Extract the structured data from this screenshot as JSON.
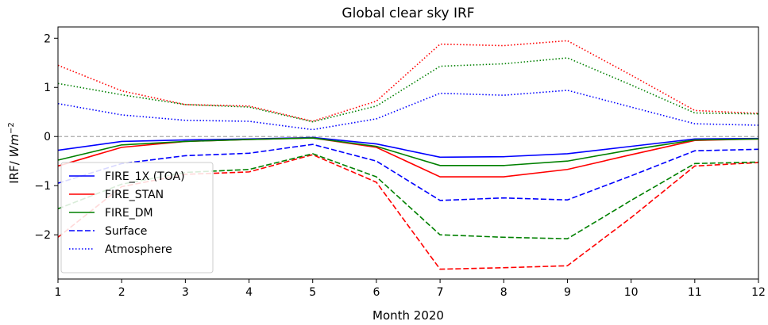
{
  "chart_data": {
    "type": "line",
    "title": "Global clear sky IRF",
    "xlabel": "Month 2020",
    "ylabel": {
      "text": "IRF/ ",
      "unit": "Wm",
      "exponent": "−2"
    },
    "x": [
      1,
      2,
      3,
      4,
      5,
      6,
      7,
      8,
      9,
      10,
      11,
      12
    ],
    "xlim": [
      1,
      12
    ],
    "xticks": [
      1,
      2,
      3,
      4,
      5,
      6,
      7,
      8,
      9,
      10,
      11,
      12
    ],
    "ylim": [
      -2.9,
      2.23
    ],
    "yticks": [
      {
        "value": -2,
        "label": "−2"
      },
      {
        "value": -1,
        "label": "−1"
      },
      0,
      1,
      2
    ],
    "reference_line": {
      "value": 0,
      "color": "#aaaaaa",
      "style": "dashed"
    },
    "legend": "lower left",
    "series": [
      {
        "name": "FIRE_1X (TOA)",
        "color": "#0000ff",
        "style": "solid",
        "values": [
          -0.28,
          -0.1,
          -0.07,
          -0.05,
          -0.02,
          -0.15,
          -0.42,
          -0.41,
          -0.35,
          -0.2,
          -0.05,
          -0.04
        ]
      },
      {
        "name": "FIRE_STAN",
        "color": "#ff0000",
        "style": "solid",
        "values": [
          -0.6,
          -0.22,
          -0.1,
          -0.06,
          -0.03,
          -0.22,
          -0.82,
          -0.82,
          -0.67,
          -0.37,
          -0.08,
          -0.05
        ]
      },
      {
        "name": "FIRE_DM",
        "color": "#008000",
        "style": "solid",
        "values": [
          -0.48,
          -0.17,
          -0.1,
          -0.06,
          -0.03,
          -0.2,
          -0.59,
          -0.59,
          -0.5,
          -0.27,
          -0.07,
          -0.05
        ]
      },
      {
        "name": "Surface",
        "color": "#0000ff",
        "style": "dashed",
        "values": [
          -0.95,
          -0.55,
          -0.39,
          -0.34,
          -0.16,
          -0.5,
          -1.3,
          -1.25,
          -1.29,
          -0.8,
          -0.29,
          -0.26
        ]
      },
      {
        "name": "Atmosphere",
        "color": "#0000ff",
        "style": "dotted",
        "values": [
          0.67,
          0.44,
          0.33,
          0.31,
          0.14,
          0.36,
          0.88,
          0.84,
          0.94,
          0.6,
          0.26,
          0.23
        ]
      },
      {
        "color": "#ff0000",
        "style": "dashed",
        "values": [
          -2.05,
          -1.02,
          -0.77,
          -0.72,
          -0.37,
          -0.93,
          -2.7,
          -2.67,
          -2.63,
          -1.65,
          -0.6,
          -0.53
        ]
      },
      {
        "color": "#008000",
        "style": "dashed",
        "values": [
          -1.47,
          -0.97,
          -0.73,
          -0.67,
          -0.35,
          -0.82,
          -2.0,
          -2.05,
          -2.08,
          -1.3,
          -0.55,
          -0.52
        ]
      },
      {
        "color": "#ff0000",
        "style": "dotted",
        "values": [
          1.45,
          0.93,
          0.65,
          0.62,
          0.31,
          0.72,
          1.88,
          1.85,
          1.95,
          1.25,
          0.53,
          0.47
        ]
      },
      {
        "color": "#008000",
        "style": "dotted",
        "values": [
          1.08,
          0.85,
          0.65,
          0.6,
          0.3,
          0.62,
          1.43,
          1.48,
          1.6,
          1.05,
          0.48,
          0.46
        ]
      }
    ]
  }
}
